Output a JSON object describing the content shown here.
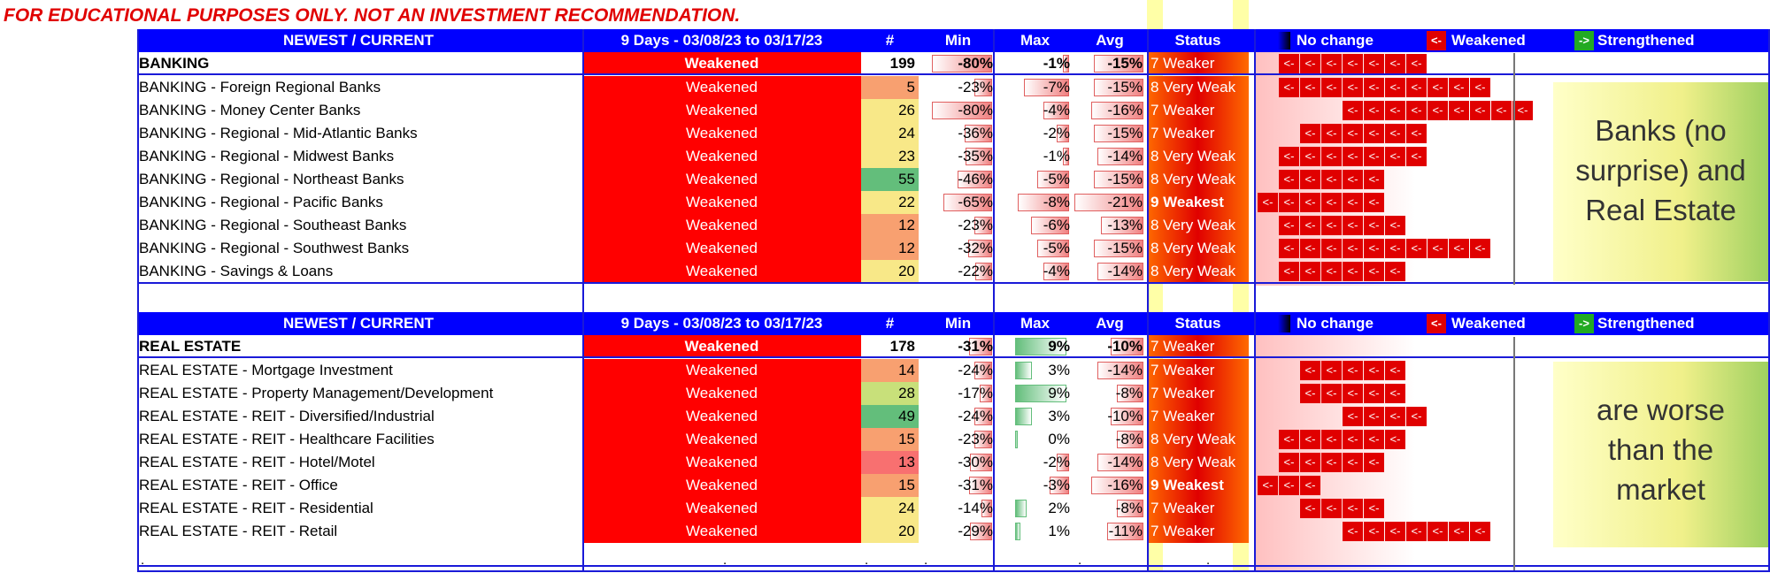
{
  "disclaimer": "FOR EDUCATIONAL PURPOSES ONLY. NOT AN INVESTMENT RECOMMENDATION.",
  "header": {
    "col_group": "NEWEST / CURRENT",
    "col_period": "9 Days - 03/08/23 to 03/17/23",
    "col_count": "#",
    "col_min": "Min",
    "col_max": "Max",
    "col_avg": "Avg",
    "col_status": "Status",
    "legend_no_change": "No change",
    "legend_weakened_arrow": "<-",
    "legend_weakened": "Weakened",
    "legend_strengthened_arrow": "->",
    "legend_strengthened": "Strengthened"
  },
  "colors": {
    "header_blue": "#0000ff",
    "weakened_red": "#ff0000",
    "strengthened_green": "#00a000"
  },
  "sections": [
    {
      "summary": {
        "name": "BANKING",
        "trend": "Weakened",
        "count": "199",
        "min": "-80%",
        "max": "-1%",
        "avg": "-15%",
        "status": "7 Weaker",
        "min_v": -80,
        "max_v": -1,
        "avg_v": -15
      },
      "rows": [
        {
          "name": "BANKING - Foreign Regional Banks",
          "trend": "Weakened",
          "count": "5",
          "min": "-23%",
          "max": "-7%",
          "avg": "-15%",
          "status": "8 Very Weak",
          "min_v": -23,
          "max_v": -7,
          "avg_v": -15,
          "count_color": "#f8a070",
          "arrow_start": 0,
          "arrow_n": 10
        },
        {
          "name": "BANKING - Money Center Banks",
          "trend": "Weakened",
          "count": "26",
          "min": "-80%",
          "max": "-4%",
          "avg": "-16%",
          "status": "7 Weaker",
          "min_v": -80,
          "max_v": -4,
          "avg_v": -16,
          "count_color": "#f8e888",
          "arrow_start": 3,
          "arrow_n": 9
        },
        {
          "name": "BANKING - Regional - Mid-Atlantic Banks",
          "trend": "Weakened",
          "count": "24",
          "min": "-36%",
          "max": "-2%",
          "avg": "-15%",
          "status": "7 Weaker",
          "min_v": -36,
          "max_v": -2,
          "avg_v": -15,
          "count_color": "#f8e888",
          "arrow_start": 1,
          "arrow_n": 6
        },
        {
          "name": "BANKING - Regional - Midwest Banks",
          "trend": "Weakened",
          "count": "23",
          "min": "-35%",
          "max": "-1%",
          "avg": "-14%",
          "status": "8 Very Weak",
          "min_v": -35,
          "max_v": -1,
          "avg_v": -14,
          "count_color": "#f8e888",
          "arrow_start": 0,
          "arrow_n": 7
        },
        {
          "name": "BANKING - Regional - Northeast Banks",
          "trend": "Weakened",
          "count": "55",
          "min": "-46%",
          "max": "-5%",
          "avg": "-15%",
          "status": "8 Very Weak",
          "min_v": -46,
          "max_v": -5,
          "avg_v": -15,
          "count_color": "#63be7b",
          "arrow_start": 0,
          "arrow_n": 5
        },
        {
          "name": "BANKING - Regional - Pacific Banks",
          "trend": "Weakened",
          "count": "22",
          "min": "-65%",
          "max": "-8%",
          "avg": "-21%",
          "status": "9 Weakest",
          "min_v": -65,
          "max_v": -8,
          "avg_v": -21,
          "count_color": "#f8e888",
          "arrow_start": -1,
          "arrow_n": 6
        },
        {
          "name": "BANKING - Regional - Southeast Banks",
          "trend": "Weakened",
          "count": "12",
          "min": "-23%",
          "max": "-6%",
          "avg": "-13%",
          "status": "8 Very Weak",
          "min_v": -23,
          "max_v": -6,
          "avg_v": -13,
          "count_color": "#f8a070",
          "arrow_start": 0,
          "arrow_n": 6
        },
        {
          "name": "BANKING - Regional - Southwest Banks",
          "trend": "Weakened",
          "count": "12",
          "min": "-32%",
          "max": "-5%",
          "avg": "-15%",
          "status": "8 Very Weak",
          "min_v": -32,
          "max_v": -5,
          "avg_v": -15,
          "count_color": "#f8a070",
          "arrow_start": 0,
          "arrow_n": 10
        },
        {
          "name": "BANKING - Savings & Loans",
          "trend": "Weakened",
          "count": "20",
          "min": "-22%",
          "max": "-4%",
          "avg": "-14%",
          "status": "8 Very Weak",
          "min_v": -22,
          "max_v": -4,
          "avg_v": -14,
          "count_color": "#f8e888",
          "arrow_start": 0,
          "arrow_n": 6
        }
      ]
    },
    {
      "summary": {
        "name": "REAL ESTATE",
        "trend": "Weakened",
        "count": "178",
        "min": "-31%",
        "max": "9%",
        "avg": "-10%",
        "status": "7 Weaker",
        "min_v": -31,
        "max_v": 9,
        "avg_v": -10
      },
      "rows": [
        {
          "name": "REAL ESTATE - Mortgage Investment",
          "trend": "Weakened",
          "count": "14",
          "min": "-24%",
          "max": "3%",
          "avg": "-14%",
          "status": "7 Weaker",
          "min_v": -24,
          "max_v": 3,
          "avg_v": -14,
          "count_color": "#f8a070",
          "arrow_start": 1,
          "arrow_n": 5
        },
        {
          "name": "REAL ESTATE - Property Management/Development",
          "trend": "Weakened",
          "count": "28",
          "min": "-17%",
          "max": "9%",
          "avg": "-8%",
          "status": "7 Weaker",
          "min_v": -17,
          "max_v": 9,
          "avg_v": -8,
          "count_color": "#c8e07a",
          "arrow_start": 1,
          "arrow_n": 5
        },
        {
          "name": "REAL ESTATE - REIT - Diversified/Industrial",
          "trend": "Weakened",
          "count": "49",
          "min": "-24%",
          "max": "3%",
          "avg": "-10%",
          "status": "7 Weaker",
          "min_v": -24,
          "max_v": 3,
          "avg_v": -10,
          "count_color": "#63be7b",
          "arrow_start": 3,
          "arrow_n": 4
        },
        {
          "name": "REAL ESTATE - REIT - Healthcare Facilities",
          "trend": "Weakened",
          "count": "15",
          "min": "-23%",
          "max": "0%",
          "avg": "-8%",
          "status": "8 Very Weak",
          "min_v": -23,
          "max_v": 0,
          "avg_v": -8,
          "count_color": "#f8a070",
          "arrow_start": 0,
          "arrow_n": 6
        },
        {
          "name": "REAL ESTATE - REIT - Hotel/Motel",
          "trend": "Weakened",
          "count": "13",
          "min": "-30%",
          "max": "-2%",
          "avg": "-14%",
          "status": "8 Very Weak",
          "min_v": -30,
          "max_v": -2,
          "avg_v": -14,
          "count_color": "#f87070",
          "arrow_start": 0,
          "arrow_n": 5
        },
        {
          "name": "REAL ESTATE - REIT - Office",
          "trend": "Weakened",
          "count": "15",
          "min": "-31%",
          "max": "-3%",
          "avg": "-16%",
          "status": "9 Weakest",
          "min_v": -31,
          "max_v": -3,
          "avg_v": -16,
          "count_color": "#f8a070",
          "arrow_start": -1,
          "arrow_n": 3
        },
        {
          "name": "REAL ESTATE - REIT - Residential",
          "trend": "Weakened",
          "count": "24",
          "min": "-14%",
          "max": "2%",
          "avg": "-8%",
          "status": "7 Weaker",
          "min_v": -14,
          "max_v": 2,
          "avg_v": -8,
          "count_color": "#f8e888",
          "arrow_start": 1,
          "arrow_n": 4
        },
        {
          "name": "REAL ESTATE - REIT - Retail",
          "trend": "Weakened",
          "count": "20",
          "min": "-29%",
          "max": "1%",
          "avg": "-11%",
          "status": "7 Weaker",
          "min_v": -29,
          "max_v": 1,
          "avg_v": -11,
          "count_color": "#f8e888",
          "arrow_start": 3,
          "arrow_n": 7
        }
      ]
    }
  ],
  "notes": {
    "banking_lines": [
      "Banks (no",
      "surprise) and",
      "Real Estate"
    ],
    "real_estate_lines": [
      "are worse",
      "than the",
      "market"
    ]
  },
  "footer_dots": ".",
  "arrow_glyph": "<-"
}
